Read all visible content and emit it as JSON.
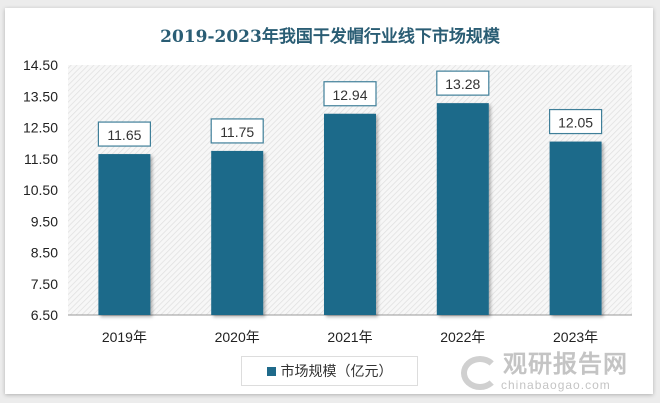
{
  "chart_data": {
    "type": "bar",
    "title": "2019-2023年我国干发帽行业线下市场规模",
    "categories": [
      "2019年",
      "2020年",
      "2021年",
      "2022年",
      "2023年"
    ],
    "series": [
      {
        "name": "市场规模（亿元）",
        "values": [
          11.65,
          11.75,
          12.94,
          13.28,
          12.05
        ]
      }
    ],
    "ylim": [
      6.5,
      14.5
    ],
    "yticks": [
      "6.50",
      "7.50",
      "8.50",
      "9.50",
      "10.50",
      "11.50",
      "12.50",
      "13.50",
      "14.50"
    ],
    "legend": "bottom",
    "grid": false,
    "bar_color": "#1f6a8a",
    "title_color": "#2a5d74"
  },
  "watermark": {
    "cn": "观研报告网",
    "en": "chinabaogao.com"
  }
}
